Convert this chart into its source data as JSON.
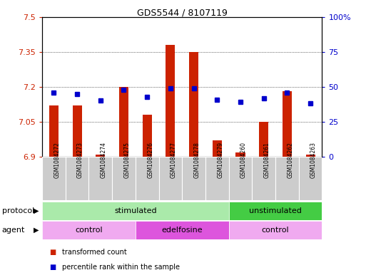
{
  "title": "GDS5544 / 8107119",
  "samples": [
    "GSM1084272",
    "GSM1084273",
    "GSM1084274",
    "GSM1084275",
    "GSM1084276",
    "GSM1084277",
    "GSM1084278",
    "GSM1084279",
    "GSM1084260",
    "GSM1084261",
    "GSM1084262",
    "GSM1084263"
  ],
  "red_values": [
    7.12,
    7.12,
    6.91,
    7.2,
    7.08,
    7.38,
    7.35,
    6.97,
    6.92,
    7.05,
    7.18,
    6.91
  ],
  "blue_values_pct": [
    46,
    45,
    40,
    48,
    43,
    49,
    49,
    41,
    39,
    42,
    46,
    38
  ],
  "ylim": [
    6.9,
    7.5
  ],
  "yticks": [
    6.9,
    7.05,
    7.2,
    7.35,
    7.5
  ],
  "ytick_labels": [
    "6.9",
    "7.05",
    "7.2",
    "7.35",
    "7.5"
  ],
  "y2lim": [
    0,
    100
  ],
  "y2ticks": [
    0,
    25,
    50,
    75,
    100
  ],
  "y2ticklabels": [
    "0",
    "25",
    "50",
    "75",
    "100%"
  ],
  "red_color": "#cc2200",
  "blue_color": "#0000cc",
  "bar_bottom": 6.9,
  "bar_width": 0.4,
  "protocol_groups": [
    {
      "label": "stimulated",
      "start": 0,
      "end": 8,
      "color": "#aaeaaa"
    },
    {
      "label": "unstimulated",
      "start": 8,
      "end": 12,
      "color": "#44cc44"
    }
  ],
  "agent_groups": [
    {
      "label": "control",
      "start": 0,
      "end": 4,
      "color": "#f0aaf0"
    },
    {
      "label": "edelfosine",
      "start": 4,
      "end": 8,
      "color": "#dd55dd"
    },
    {
      "label": "control",
      "start": 8,
      "end": 12,
      "color": "#f0aaf0"
    }
  ],
  "legend_items": [
    {
      "label": "transformed count",
      "color": "#cc2200"
    },
    {
      "label": "percentile rank within the sample",
      "color": "#0000cc"
    }
  ],
  "protocol_label": "protocol",
  "agent_label": "agent",
  "sample_bg_color": "#cccccc",
  "bg_color": "#ffffff",
  "tick_label_color_left": "#cc2200",
  "tick_label_color_right": "#0000cc"
}
